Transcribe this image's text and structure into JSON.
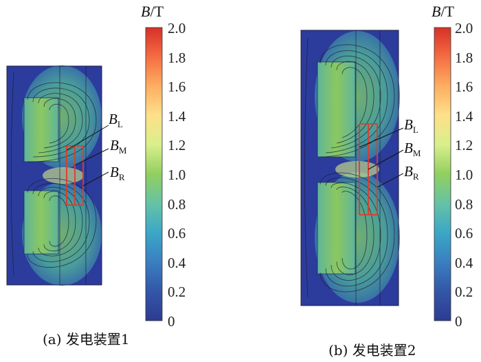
{
  "colorbar": {
    "unit_symbol": "B",
    "unit_rest": "/T",
    "ticks": [
      "2.0",
      "1.8",
      "1.6",
      "1.4",
      "1.2",
      "1.0",
      "0.8",
      "0.6",
      "0.4",
      "0.2",
      "0"
    ]
  },
  "panels": [
    {
      "caption": "(a)  发电装置1",
      "labels": {
        "bl": "B",
        "bl_sub": "L",
        "bm": "B",
        "bm_sub": "M",
        "br": "B",
        "br_sub": "R"
      }
    },
    {
      "caption": "(b)  发电装置2",
      "labels": {
        "bl": "B",
        "bl_sub": "L",
        "bm": "B",
        "bm_sub": "M",
        "br": "B",
        "br_sub": "R"
      }
    }
  ],
  "colors": {
    "background": "#2b3a9a",
    "field_mid": "#3a9fb8",
    "field_high": "#6cbb63",
    "probe_lines": "#e03a2b"
  }
}
